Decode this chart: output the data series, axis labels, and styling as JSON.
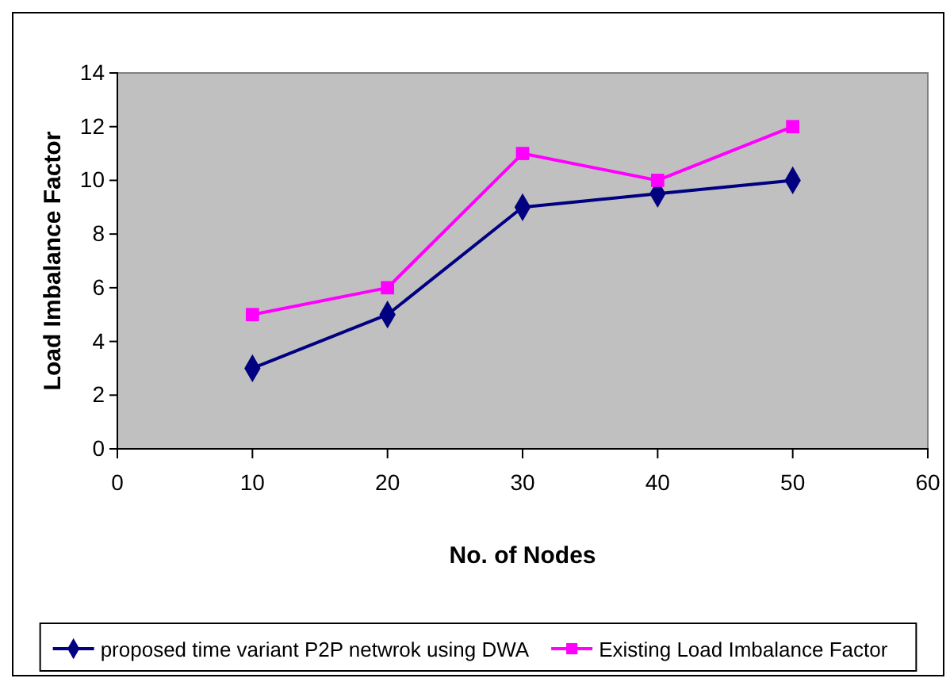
{
  "chart_data": {
    "type": "line",
    "xlabel": "No. of Nodes",
    "ylabel": "Load Imbalance Factor",
    "x": [
      10,
      20,
      30,
      40,
      50
    ],
    "xlim": [
      0,
      60
    ],
    "xticks": [
      0,
      10,
      20,
      30,
      40,
      50,
      60
    ],
    "ylim": [
      0,
      14
    ],
    "yticks": [
      0,
      2,
      4,
      6,
      8,
      10,
      12,
      14
    ],
    "grid": false,
    "legend": "bottom",
    "line_style": "solid",
    "series": [
      {
        "name": "proposed time variant P2P netwrok using DWA",
        "color": "#000080",
        "marker": "diamond",
        "values": [
          3,
          5,
          9,
          9.5,
          10
        ]
      },
      {
        "name": "Existing Load Imbalance Factor",
        "color": "#ff00ff",
        "marker": "square",
        "values": [
          5,
          6,
          11,
          10,
          12
        ]
      }
    ]
  }
}
